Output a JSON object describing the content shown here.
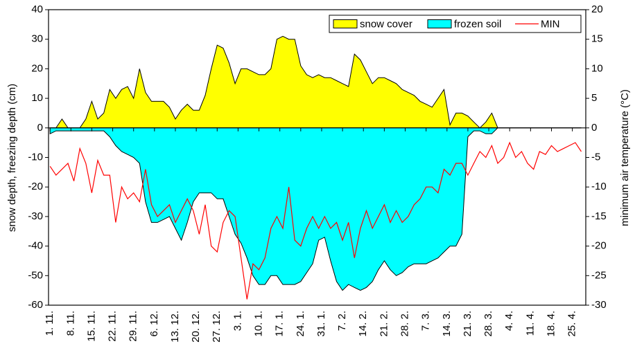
{
  "chart_data": {
    "type": "combo",
    "x": [
      0,
      2,
      4,
      6,
      8,
      10,
      12,
      14,
      16,
      18,
      20,
      22,
      24,
      26,
      28,
      30,
      32,
      34,
      36,
      38,
      40,
      42,
      44,
      46,
      48,
      50,
      52,
      54,
      56,
      58,
      60,
      62,
      64,
      66,
      68,
      70,
      72,
      74,
      76,
      78,
      80,
      82,
      84,
      86,
      88,
      90,
      92,
      94,
      96,
      98,
      100,
      102,
      104,
      106,
      108,
      110,
      112,
      114,
      116,
      118,
      120,
      122,
      124,
      126,
      128,
      130,
      132,
      134,
      136,
      138,
      140,
      142,
      144,
      146,
      148,
      150,
      152,
      154,
      156,
      158,
      160,
      162,
      164,
      166,
      168,
      170,
      172,
      174,
      176,
      178
    ],
    "xlim": [
      -0.5,
      179.5
    ],
    "xticks": [
      {
        "value": 0,
        "label": "1. 11."
      },
      {
        "value": 7,
        "label": "8. 11."
      },
      {
        "value": 14,
        "label": "15. 11."
      },
      {
        "value": 21,
        "label": "22. 11."
      },
      {
        "value": 28,
        "label": "29. 11."
      },
      {
        "value": 35,
        "label": "6. 12."
      },
      {
        "value": 42,
        "label": "13. 12."
      },
      {
        "value": 49,
        "label": "20. 12."
      },
      {
        "value": 56,
        "label": "27. 12."
      },
      {
        "value": 63,
        "label": "3. 1."
      },
      {
        "value": 70,
        "label": "10. 1."
      },
      {
        "value": 77,
        "label": "17. 1."
      },
      {
        "value": 84,
        "label": "24. 1."
      },
      {
        "value": 91,
        "label": "31. 1."
      },
      {
        "value": 98,
        "label": "7. 2."
      },
      {
        "value": 105,
        "label": "14. 2."
      },
      {
        "value": 112,
        "label": "21. 2."
      },
      {
        "value": 119,
        "label": "28. 2."
      },
      {
        "value": 126,
        "label": "7. 3."
      },
      {
        "value": 133,
        "label": "14. 3."
      },
      {
        "value": 140,
        "label": "21. 3."
      },
      {
        "value": 147,
        "label": "28. 3."
      },
      {
        "value": 154,
        "label": "4. 4."
      },
      {
        "value": 161,
        "label": "11. 4."
      },
      {
        "value": 168,
        "label": "18. 4."
      },
      {
        "value": 175,
        "label": "25. 4."
      }
    ],
    "y_label": "snow depth, freezing depth (cm)",
    "y2_label": "minimum air temperature (°C)",
    "ylim": [
      -60,
      40
    ],
    "yticks": [
      -60,
      -50,
      -40,
      -30,
      -20,
      -10,
      0,
      10,
      20,
      30,
      40
    ],
    "y2lim": [
      -30,
      20
    ],
    "y2ticks": [
      -30,
      -25,
      -20,
      -15,
      -10,
      -5,
      0,
      5,
      10,
      15,
      20
    ],
    "legend": "upper right",
    "series": [
      {
        "name": "snow cover",
        "type": "area",
        "color": "#ffff00",
        "values": [
          0,
          0,
          3,
          0,
          0,
          0,
          3,
          9,
          3,
          5,
          13,
          10,
          13,
          14,
          10,
          20,
          12,
          9,
          9,
          9,
          7,
          3,
          6,
          8,
          6,
          6,
          11,
          20,
          28,
          27,
          22,
          15,
          20,
          20,
          19,
          18,
          18,
          20,
          30,
          31,
          30,
          30,
          21,
          18,
          17,
          18,
          17,
          17,
          16,
          15,
          14,
          25,
          23,
          19,
          15,
          17,
          17,
          16,
          15,
          13,
          12,
          11,
          9,
          8,
          7,
          10,
          13,
          1,
          5,
          5,
          4,
          2,
          0,
          2,
          5,
          0,
          0,
          0,
          0,
          0,
          0,
          0,
          0,
          0,
          0,
          0,
          0,
          0,
          0,
          0
        ]
      },
      {
        "name": "frozen soil",
        "type": "area",
        "color": "#00ffff",
        "values": [
          -2,
          -1,
          -1,
          -1,
          -1,
          -1,
          -1,
          -1,
          -1,
          -1,
          -3,
          -6,
          -8,
          -9,
          -10,
          -12,
          -25,
          -32,
          -32,
          -31,
          -30,
          -34,
          -38,
          -32,
          -25,
          -22,
          -22,
          -22,
          -24,
          -24,
          -30,
          -36,
          -39,
          -44,
          -50,
          -53,
          -53,
          -50,
          -50,
          -53,
          -53,
          -53,
          -52,
          -49,
          -46,
          -38,
          -37,
          -45,
          -52,
          -55,
          -53,
          -54,
          -55,
          -54,
          -52,
          -48,
          -45,
          -48,
          -50,
          -49,
          -47,
          -46,
          -46,
          -46,
          -45,
          -44,
          -42,
          -40,
          -40,
          -36,
          -3,
          -1,
          -1,
          -2,
          -2,
          0,
          0,
          0,
          0,
          0,
          0,
          0,
          0,
          0,
          0,
          0,
          0,
          0,
          0,
          0
        ]
      },
      {
        "name": "MIN",
        "type": "line",
        "axis": "y2",
        "color": "#ff0000",
        "values": [
          -6.5,
          -8,
          -7,
          -6,
          -9,
          -3.5,
          -6,
          -11,
          -5.5,
          -8,
          -8,
          -16,
          -10,
          -12,
          -11,
          -12.5,
          -7,
          -13,
          -15,
          -14,
          -13,
          -16,
          -14,
          -12,
          -14,
          -18,
          -13,
          -20,
          -21,
          -16,
          -14,
          -15,
          -22,
          -29,
          -23,
          -24,
          -22,
          -17,
          -15,
          -17,
          -10,
          -19,
          -20,
          -17,
          -15,
          -17,
          -15,
          -17,
          -16,
          -19,
          -16,
          -22,
          -17,
          -14,
          -17,
          -15,
          -13,
          -16,
          -14,
          -16,
          -15,
          -13,
          -12,
          -10,
          -10,
          -11,
          -7,
          -8,
          -6,
          -6,
          -8,
          -6,
          -4,
          -5,
          -3,
          -6,
          -5,
          -2.5,
          -5,
          -4,
          -6,
          -7,
          -4,
          -4.5,
          -3,
          -4,
          -3.5,
          -3,
          -2.5,
          -4
        ]
      }
    ]
  }
}
